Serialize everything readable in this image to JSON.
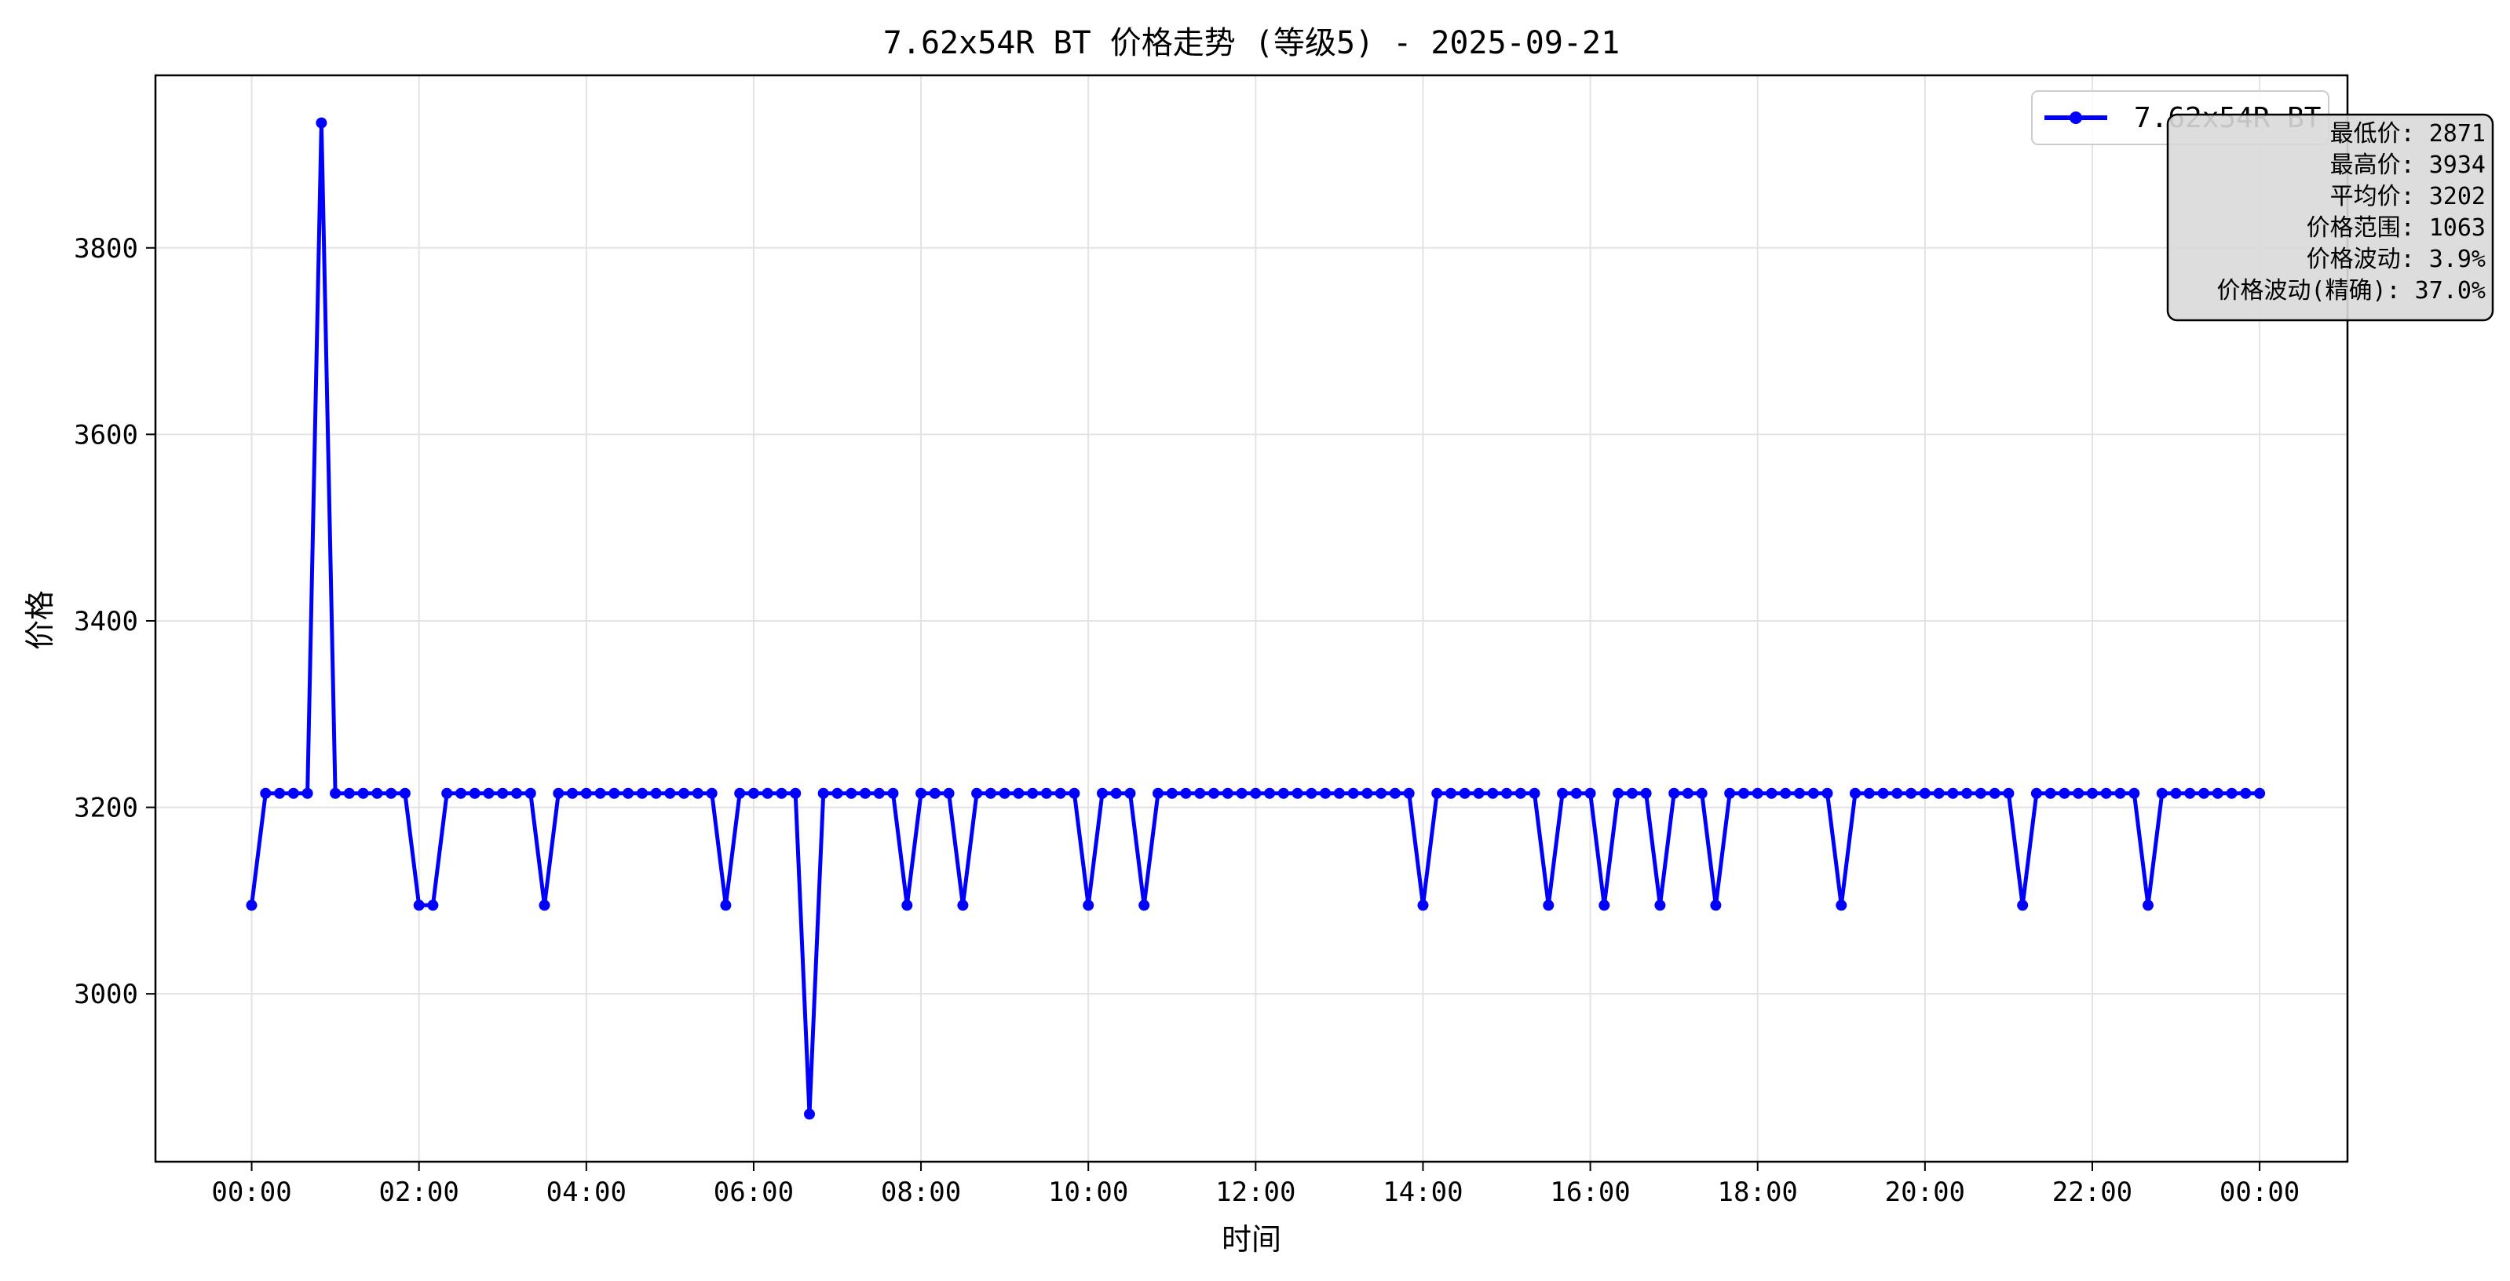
{
  "chart_data": {
    "type": "line",
    "title": "7.62x54R BT 价格走势 (等级5) - 2025-09-21",
    "xlabel": "时间",
    "ylabel": "价格",
    "x_ticks": [
      "00:00",
      "02:00",
      "04:00",
      "06:00",
      "08:00",
      "10:00",
      "12:00",
      "14:00",
      "16:00",
      "18:00",
      "20:00",
      "22:00",
      "00:00"
    ],
    "y_ticks": [
      3000,
      3200,
      3400,
      3600,
      3800
    ],
    "ylim": [
      2820,
      3985
    ],
    "xlim_hours": [
      -1.15,
      25.05
    ],
    "grid": true,
    "legend_position": "top-right",
    "series": [
      {
        "name": "7.62x54R BT",
        "color": "#0000ff",
        "sample_interval_minutes": 10,
        "values": [
          3095,
          3215,
          3215,
          3215,
          3215,
          3934,
          3215,
          3215,
          3215,
          3215,
          3215,
          3215,
          3095,
          3095,
          3215,
          3215,
          3215,
          3215,
          3215,
          3215,
          3215,
          3095,
          3215,
          3215,
          3215,
          3215,
          3215,
          3215,
          3215,
          3215,
          3215,
          3215,
          3215,
          3215,
          3095,
          3215,
          3215,
          3215,
          3215,
          3215,
          2871,
          3215,
          3215,
          3215,
          3215,
          3215,
          3215,
          3095,
          3215,
          3215,
          3215,
          3095,
          3215,
          3215,
          3215,
          3215,
          3215,
          3215,
          3215,
          3215,
          3095,
          3215,
          3215,
          3215,
          3095,
          3215,
          3215,
          3215,
          3215,
          3215,
          3215,
          3215,
          3215,
          3215,
          3215,
          3215,
          3215,
          3215,
          3215,
          3215,
          3215,
          3215,
          3215,
          3215,
          3095,
          3215,
          3215,
          3215,
          3215,
          3215,
          3215,
          3215,
          3215,
          3095,
          3215,
          3215,
          3215,
          3095,
          3215,
          3215,
          3215,
          3095,
          3215,
          3215,
          3215,
          3095,
          3215,
          3215,
          3215,
          3215,
          3215,
          3215,
          3215,
          3215,
          3095,
          3215,
          3215,
          3215,
          3215,
          3215,
          3215,
          3215,
          3215,
          3215,
          3215,
          3215,
          3215,
          3095,
          3215,
          3215,
          3215,
          3215,
          3215,
          3215,
          3215,
          3215,
          3095,
          3215,
          3215,
          3215,
          3215,
          3215,
          3215,
          3215,
          3215
        ]
      }
    ],
    "stats": [
      "最低价: 2871",
      "最高价: 3934",
      "平均价: 3202",
      "价格范围: 1063",
      "价格波动: 3.9%",
      "价格波动(精确): 37.0%"
    ],
    "stats_box_color": "#d9d9d9"
  }
}
